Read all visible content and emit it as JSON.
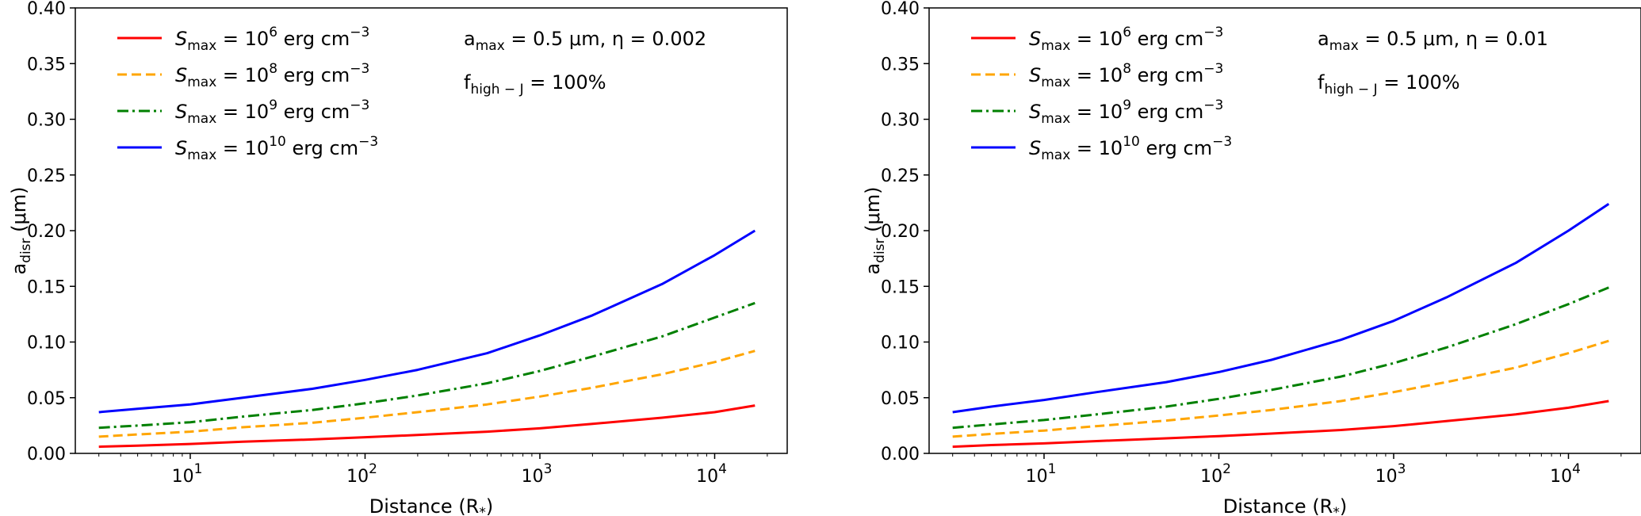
{
  "chart_data": [
    {
      "type": "line",
      "panel": "left",
      "xscale": "log",
      "xlabel": "Distance (R_*)",
      "xlabel_main": "Distance (R",
      "xlabel_sub": "*",
      "xlabel_close": ")",
      "ylabel_main": "a",
      "ylabel_sub": "disr",
      "ylabel_unit": " (μm)",
      "ylim": [
        0,
        0.4
      ],
      "xlim": [
        2.2,
        26000
      ],
      "y_ticks": [
        "0.00",
        "0.05",
        "0.10",
        "0.15",
        "0.20",
        "0.25",
        "0.30",
        "0.35",
        "0.40"
      ],
      "y_tick_values": [
        0,
        0.05,
        0.1,
        0.15,
        0.2,
        0.25,
        0.3,
        0.35,
        0.4
      ],
      "x_ticks": [
        {
          "base": "10",
          "exp": "1",
          "value": 10
        },
        {
          "base": "10",
          "exp": "2",
          "value": 100
        },
        {
          "base": "10",
          "exp": "3",
          "value": 1000
        },
        {
          "base": "10",
          "exp": "4",
          "value": 10000
        }
      ],
      "annotation_1": {
        "main": "a",
        "sub": "max",
        "rest": " = 0.5 μm,  η = 0.002"
      },
      "annotation_2": {
        "main": "f",
        "sub": "high − J",
        "rest": " = 100%"
      },
      "legend_location": "upper-left",
      "x": [
        3,
        5,
        10,
        20,
        50,
        100,
        200,
        500,
        1000,
        2000,
        5000,
        10000,
        17000
      ],
      "series": [
        {
          "name": "S_max = 10^6 erg cm^-3",
          "legend": {
            "sym": "S",
            "sub": "max",
            "pre": " = 10",
            "exp": "6",
            "unit": " erg cm",
            "uexp": "−3"
          },
          "color": "#ff0000",
          "dash": "solid",
          "values": [
            0.006,
            0.007,
            0.0085,
            0.0105,
            0.0125,
            0.0145,
            0.0165,
            0.0195,
            0.0225,
            0.0265,
            0.032,
            0.037,
            0.043
          ]
        },
        {
          "name": "S_max = 10^8 erg cm^-3",
          "legend": {
            "sym": "S",
            "sub": "max",
            "pre": " = 10",
            "exp": "8",
            "unit": " erg cm",
            "uexp": "−3"
          },
          "color": "#ffa500",
          "dash": "dashed",
          "values": [
            0.015,
            0.017,
            0.0195,
            0.0235,
            0.0275,
            0.032,
            0.037,
            0.044,
            0.051,
            0.059,
            0.071,
            0.082,
            0.092
          ]
        },
        {
          "name": "S_max = 10^9 erg cm^-3",
          "legend": {
            "sym": "S",
            "sub": "max",
            "pre": " = 10",
            "exp": "9",
            "unit": " erg cm",
            "uexp": "−3"
          },
          "color": "#008000",
          "dash": "dashdot",
          "values": [
            0.023,
            0.025,
            0.028,
            0.033,
            0.039,
            0.045,
            0.052,
            0.063,
            0.074,
            0.087,
            0.105,
            0.122,
            0.135
          ]
        },
        {
          "name": "S_max = 10^10 erg cm^-3",
          "legend": {
            "sym": "S",
            "sub": "max",
            "pre": " = 10",
            "exp": "10",
            "unit": " erg cm",
            "uexp": "−3"
          },
          "color": "#0000ff",
          "dash": "solid",
          "values": [
            0.037,
            0.04,
            0.044,
            0.05,
            0.058,
            0.066,
            0.075,
            0.09,
            0.106,
            0.124,
            0.152,
            0.178,
            0.2
          ]
        }
      ]
    },
    {
      "type": "line",
      "panel": "right",
      "xscale": "log",
      "xlabel": "Distance (R_*)",
      "xlabel_main": "Distance (R",
      "xlabel_sub": "*",
      "xlabel_close": ")",
      "ylabel_main": "a",
      "ylabel_sub": "disr",
      "ylabel_unit": " (μm)",
      "ylim": [
        0,
        0.4
      ],
      "xlim": [
        2.2,
        26000
      ],
      "y_ticks": [
        "0.00",
        "0.05",
        "0.10",
        "0.15",
        "0.20",
        "0.25",
        "0.30",
        "0.35",
        "0.40"
      ],
      "y_tick_values": [
        0,
        0.05,
        0.1,
        0.15,
        0.2,
        0.25,
        0.3,
        0.35,
        0.4
      ],
      "x_ticks": [
        {
          "base": "10",
          "exp": "1",
          "value": 10
        },
        {
          "base": "10",
          "exp": "2",
          "value": 100
        },
        {
          "base": "10",
          "exp": "3",
          "value": 1000
        },
        {
          "base": "10",
          "exp": "4",
          "value": 10000
        }
      ],
      "annotation_1": {
        "main": "a",
        "sub": "max",
        "rest": " = 0.5 μm,  η = 0.01"
      },
      "annotation_2": {
        "main": "f",
        "sub": "high − J",
        "rest": " = 100%"
      },
      "legend_location": "upper-left",
      "x": [
        3,
        5,
        10,
        20,
        50,
        100,
        200,
        500,
        1000,
        2000,
        5000,
        10000,
        17000
      ],
      "series": [
        {
          "name": "S_max = 10^6 erg cm^-3",
          "legend": {
            "sym": "S",
            "sub": "max",
            "pre": " = 10",
            "exp": "6",
            "unit": " erg cm",
            "uexp": "−3"
          },
          "color": "#ff0000",
          "dash": "solid",
          "values": [
            0.006,
            0.0075,
            0.009,
            0.011,
            0.0135,
            0.0155,
            0.0178,
            0.021,
            0.0245,
            0.029,
            0.035,
            0.041,
            0.047
          ]
        },
        {
          "name": "S_max = 10^8 erg cm^-3",
          "legend": {
            "sym": "S",
            "sub": "max",
            "pre": " = 10",
            "exp": "8",
            "unit": " erg cm",
            "uexp": "−3"
          },
          "color": "#ffa500",
          "dash": "dashed",
          "values": [
            0.015,
            0.0175,
            0.0205,
            0.0245,
            0.0295,
            0.034,
            0.039,
            0.047,
            0.055,
            0.064,
            0.077,
            0.09,
            0.101
          ]
        },
        {
          "name": "S_max = 10^9 erg cm^-3",
          "legend": {
            "sym": "S",
            "sub": "max",
            "pre": " = 10",
            "exp": "9",
            "unit": " erg cm",
            "uexp": "−3"
          },
          "color": "#008000",
          "dash": "dashdot",
          "values": [
            0.023,
            0.026,
            0.03,
            0.035,
            0.042,
            0.049,
            0.057,
            0.069,
            0.081,
            0.095,
            0.116,
            0.134,
            0.149
          ]
        },
        {
          "name": "S_max = 10^10 erg cm^-3",
          "legend": {
            "sym": "S",
            "sub": "max",
            "pre": " = 10",
            "exp": "10",
            "unit": " erg cm",
            "uexp": "−3"
          },
          "color": "#0000ff",
          "dash": "solid",
          "values": [
            0.037,
            0.042,
            0.048,
            0.055,
            0.064,
            0.073,
            0.084,
            0.102,
            0.119,
            0.14,
            0.171,
            0.2,
            0.224
          ]
        }
      ]
    }
  ]
}
